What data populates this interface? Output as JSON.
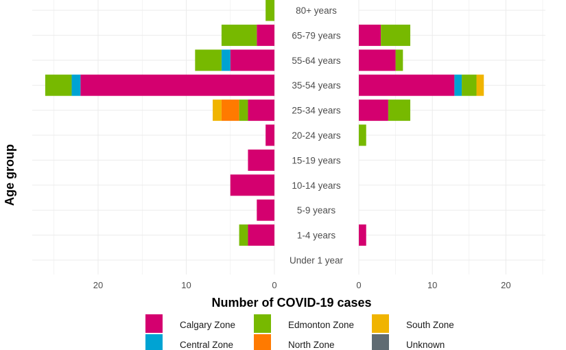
{
  "chart_data": {
    "type": "bar",
    "orientation": "horizontal",
    "layout": "two-panel back-to-back",
    "xlabel": "Number of COVID-19 cases",
    "ylabel": "Age group",
    "categories": [
      "80+ years",
      "65-79 years",
      "55-64 years",
      "35-54 years",
      "25-34 years",
      "20-24 years",
      "15-19 years",
      "10-14 years",
      "5-9 years",
      "1-4 years",
      "Under 1 year"
    ],
    "x_ticks_left": [
      20,
      10,
      0
    ],
    "x_ticks_right": [
      0,
      10,
      20
    ],
    "xlim_left": [
      0,
      27.5
    ],
    "xlim_right": [
      0,
      25.5
    ],
    "legend_position": "bottom",
    "series_order": [
      "Calgary Zone",
      "Central Zone",
      "Edmonton Zone",
      "North Zone",
      "South Zone",
      "Unknown"
    ],
    "legend": [
      {
        "name": "Calgary Zone",
        "color": "#d4006f"
      },
      {
        "name": "Edmonton Zone",
        "color": "#77b900"
      },
      {
        "name": "South Zone",
        "color": "#f0b400"
      },
      {
        "name": "Central Zone",
        "color": "#00a3d3"
      },
      {
        "name": "North Zone",
        "color": "#ff7a00"
      },
      {
        "name": "Unknown",
        "color": "#5f6b72"
      }
    ],
    "left_panel": {
      "Calgary Zone": [
        0,
        2,
        5,
        22,
        3,
        1,
        3,
        5,
        2,
        3,
        0
      ],
      "Central Zone": [
        0,
        0,
        1,
        1,
        0,
        0,
        0,
        0,
        0,
        0,
        0
      ],
      "Edmonton Zone": [
        1,
        4,
        3,
        3,
        1,
        0,
        0,
        0,
        0,
        1,
        0
      ],
      "North Zone": [
        0,
        0,
        0,
        0,
        2,
        0,
        0,
        0,
        0,
        0,
        0
      ],
      "South Zone": [
        0,
        0,
        0,
        0,
        1,
        0,
        0,
        0,
        0,
        0,
        0
      ],
      "Unknown": [
        0,
        0,
        0,
        0,
        0,
        0,
        0,
        0,
        0,
        0,
        0
      ]
    },
    "right_panel": {
      "Calgary Zone": [
        0,
        3,
        5,
        13,
        4,
        0,
        0,
        0,
        0,
        1,
        0
      ],
      "Central Zone": [
        0,
        0,
        0,
        1,
        0,
        0,
        0,
        0,
        0,
        0,
        0
      ],
      "Edmonton Zone": [
        0,
        4,
        1,
        2,
        3,
        1,
        0,
        0,
        0,
        0,
        0
      ],
      "North Zone": [
        0,
        0,
        0,
        0,
        0,
        0,
        0,
        0,
        0,
        0,
        0
      ],
      "South Zone": [
        0,
        0,
        0,
        1,
        0,
        0,
        0,
        0,
        0,
        0,
        0
      ],
      "Unknown": [
        0,
        0,
        0,
        0,
        0,
        0,
        0,
        0,
        0,
        0,
        0
      ]
    }
  }
}
